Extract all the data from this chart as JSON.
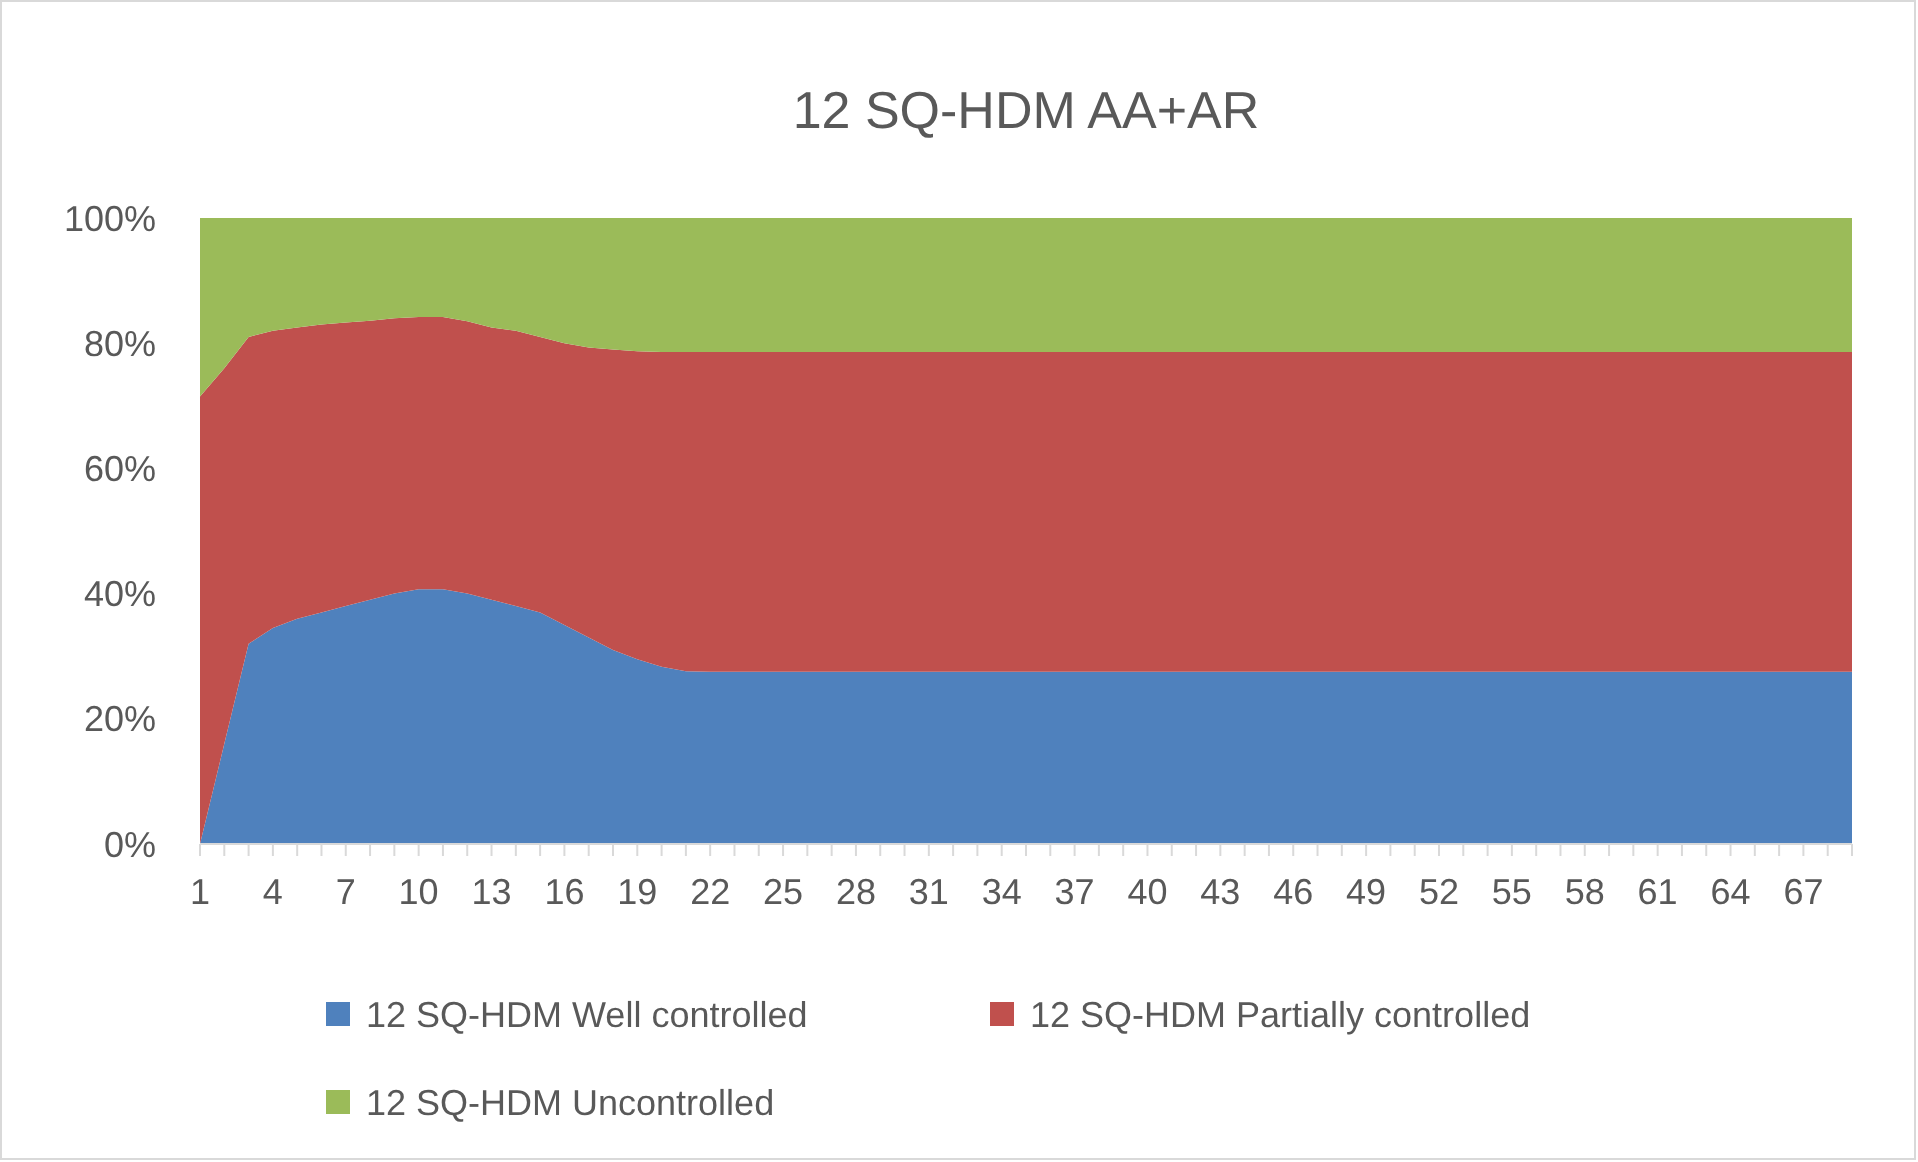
{
  "chart_data": {
    "type": "area",
    "title": "12 SQ-HDM AA+AR",
    "stacked": true,
    "legend": "bottom",
    "categories": [
      "1",
      null,
      null,
      "4",
      null,
      null,
      "7",
      null,
      null,
      "10",
      null,
      null,
      "13",
      null,
      null,
      "16",
      null,
      null,
      "19",
      null,
      null,
      "22",
      null,
      null,
      "25",
      null,
      null,
      "28",
      null,
      null,
      "31",
      null,
      null,
      "34",
      null,
      null,
      "37",
      null,
      null,
      "40",
      null,
      null,
      "43",
      null,
      null,
      "46",
      null,
      null,
      "49",
      null,
      null,
      "52",
      null,
      null,
      "55",
      null,
      null,
      "58",
      null,
      null,
      "61",
      null,
      null,
      "64",
      null,
      null,
      "67",
      null,
      null
    ],
    "ylim": [
      0,
      100
    ],
    "yticks": [
      {
        "value": 0,
        "label": "0%"
      },
      {
        "value": 20,
        "label": "20%"
      },
      {
        "value": 40,
        "label": "40%"
      },
      {
        "value": 60,
        "label": "60%"
      },
      {
        "value": 80,
        "label": "80%"
      },
      {
        "value": 100,
        "label": "100%"
      }
    ],
    "series": [
      {
        "name": "12 SQ-HDM Well controlled",
        "color": "#4f81bd",
        "values": [
          0,
          16,
          32,
          34.5,
          36,
          37,
          38,
          39,
          40,
          40.7,
          40.7,
          40,
          39,
          38,
          37,
          35,
          33,
          31,
          29.5,
          28.3,
          27.6,
          27.5,
          27.5,
          27.5,
          27.5,
          27.5,
          27.5,
          27.5,
          27.5,
          27.5,
          27.5,
          27.5,
          27.5,
          27.5,
          27.5,
          27.5,
          27.5,
          27.5,
          27.5,
          27.5,
          27.5,
          27.5,
          27.5,
          27.5,
          27.5,
          27.5,
          27.5,
          27.5,
          27.5,
          27.5,
          27.5,
          27.5,
          27.5,
          27.5,
          27.5,
          27.5,
          27.5,
          27.5,
          27.5,
          27.5,
          27.5,
          27.5,
          27.5,
          27.5,
          27.5,
          27.5,
          27.5,
          27.5,
          27.5
        ]
      },
      {
        "name": "12 SQ-HDM Partially controlled",
        "color": "#c0504d",
        "values": [
          71.5,
          60,
          49,
          47.5,
          46.5,
          46,
          45.3,
          44.6,
          44,
          43.5,
          43.5,
          43.5,
          43.5,
          44,
          44,
          45,
          46.3,
          48,
          49.2,
          50.3,
          51,
          51.1,
          51.1,
          51.1,
          51.1,
          51.1,
          51.1,
          51.1,
          51.1,
          51.1,
          51.1,
          51.1,
          51.1,
          51.1,
          51.1,
          51.1,
          51.1,
          51.1,
          51.1,
          51.1,
          51.1,
          51.1,
          51.1,
          51.1,
          51.1,
          51.1,
          51.1,
          51.1,
          51.1,
          51.1,
          51.1,
          51.1,
          51.1,
          51.1,
          51.1,
          51.1,
          51.1,
          51.1,
          51.1,
          51.1,
          51.1,
          51.1,
          51.1,
          51.1,
          51.1,
          51.1,
          51.1,
          51.1,
          51.1
        ]
      },
      {
        "name": "12 SQ-HDM Uncontrolled",
        "color": "#9bbb59",
        "values": [
          28.5,
          24,
          19,
          18,
          17.5,
          17,
          16.7,
          16.4,
          16,
          15.8,
          15.8,
          16.5,
          17.5,
          18,
          19,
          20,
          20.7,
          21,
          21.3,
          21.4,
          21.4,
          21.4,
          21.4,
          21.4,
          21.4,
          21.4,
          21.4,
          21.4,
          21.4,
          21.4,
          21.4,
          21.4,
          21.4,
          21.4,
          21.4,
          21.4,
          21.4,
          21.4,
          21.4,
          21.4,
          21.4,
          21.4,
          21.4,
          21.4,
          21.4,
          21.4,
          21.4,
          21.4,
          21.4,
          21.4,
          21.4,
          21.4,
          21.4,
          21.4,
          21.4,
          21.4,
          21.4,
          21.4,
          21.4,
          21.4,
          21.4,
          21.4,
          21.4,
          21.4,
          21.4,
          21.4,
          21.4,
          21.4,
          21.4
        ]
      }
    ]
  }
}
